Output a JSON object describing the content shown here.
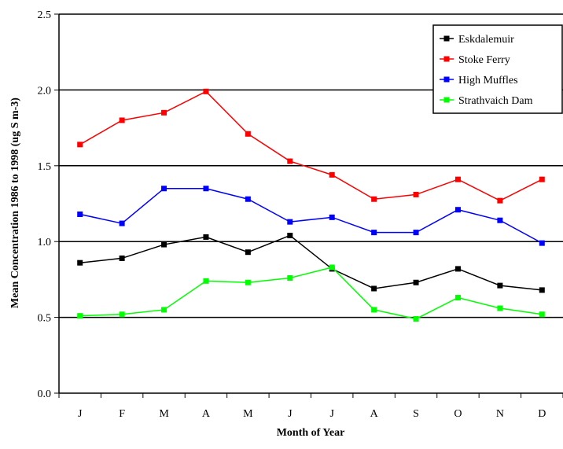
{
  "chart_data": {
    "type": "line",
    "title": "",
    "xlabel": "Month of Year",
    "ylabel": "Mean Concentration 1986 to 1998 (ug S m-3)",
    "categories": [
      "J",
      "F",
      "M",
      "A",
      "M",
      "J",
      "J",
      "A",
      "S",
      "O",
      "N",
      "D"
    ],
    "ylim": [
      0,
      2.5
    ],
    "yticks": [
      "0.0",
      "0.5",
      "1.0",
      "1.5",
      "2.0",
      "2.5"
    ],
    "grid": "horizontal",
    "legend": "top-right",
    "series": [
      {
        "name": "Eskdalemuir",
        "color": "#000000",
        "values": [
          0.86,
          0.89,
          0.98,
          1.03,
          0.93,
          1.04,
          0.82,
          0.69,
          0.73,
          0.82,
          0.71,
          0.68
        ]
      },
      {
        "name": "Stoke Ferry",
        "color": "#ff0000",
        "values": [
          1.64,
          1.8,
          1.85,
          1.99,
          1.71,
          1.53,
          1.44,
          1.28,
          1.31,
          1.41,
          1.27,
          1.41
        ]
      },
      {
        "name": "High Muffles",
        "color": "#0000ff",
        "values": [
          1.18,
          1.12,
          1.35,
          1.35,
          1.28,
          1.13,
          1.16,
          1.06,
          1.06,
          1.21,
          1.14,
          0.99
        ]
      },
      {
        "name": "Strathvaich Dam",
        "color": "#00ff00",
        "values": [
          0.51,
          0.52,
          0.55,
          0.74,
          0.73,
          0.76,
          0.83,
          0.55,
          0.49,
          0.63,
          0.56,
          0.52
        ]
      }
    ]
  }
}
